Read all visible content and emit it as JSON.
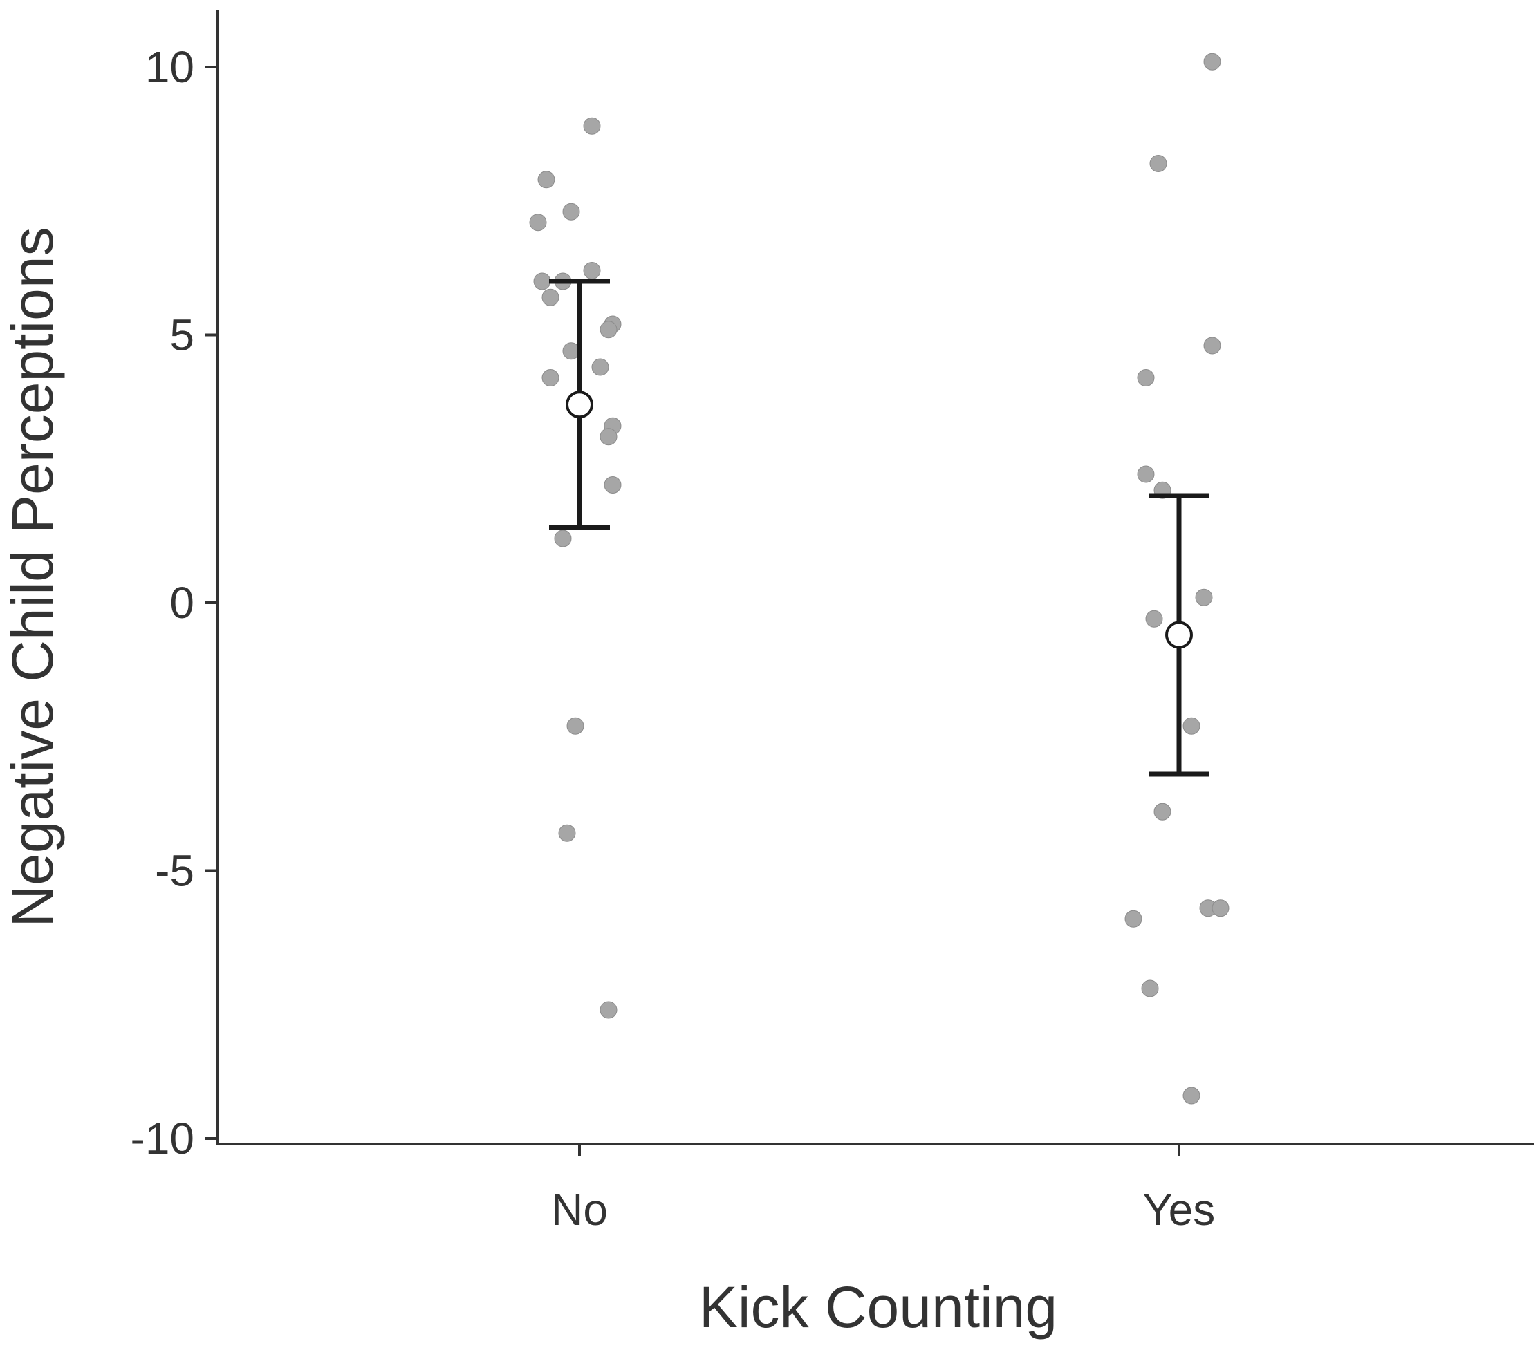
{
  "chart_data": {
    "type": "scatter",
    "title": "",
    "xlabel": "Kick Counting",
    "ylabel": "Negative Child Perceptions",
    "categories": [
      "No",
      "Yes"
    ],
    "ylim": [
      -10.3,
      11
    ],
    "yticks": [
      10,
      5,
      0,
      -5,
      -10
    ],
    "ytick_labels": [
      "10",
      "5",
      "0",
      "-5",
      "-10"
    ],
    "grid": false,
    "legend": "none",
    "colors": {
      "raw_points": "#a6a6a6",
      "summary": "#1a1a1a",
      "mean_fill": "#ffffff",
      "axis": "#333333"
    },
    "groups": [
      {
        "category": "No",
        "mean": 3.7,
        "ci": [
          1.4,
          6.0
        ],
        "points": [
          {
            "jitter": -0.08,
            "y": 7.9
          },
          {
            "jitter": 0.03,
            "y": 8.9
          },
          {
            "jitter": -0.1,
            "y": 7.1
          },
          {
            "jitter": -0.02,
            "y": 7.3
          },
          {
            "jitter": -0.09,
            "y": 6.0
          },
          {
            "jitter": -0.04,
            "y": 6.0
          },
          {
            "jitter": 0.03,
            "y": 6.2
          },
          {
            "jitter": -0.07,
            "y": 5.7
          },
          {
            "jitter": 0.08,
            "y": 5.2
          },
          {
            "jitter": 0.07,
            "y": 5.1
          },
          {
            "jitter": -0.02,
            "y": 4.7
          },
          {
            "jitter": 0.05,
            "y": 4.4
          },
          {
            "jitter": -0.07,
            "y": 4.2
          },
          {
            "jitter": 0.08,
            "y": 3.3
          },
          {
            "jitter": 0.07,
            "y": 3.1
          },
          {
            "jitter": 0.08,
            "y": 2.2
          },
          {
            "jitter": -0.04,
            "y": 1.2
          },
          {
            "jitter": -0.01,
            "y": -2.3
          },
          {
            "jitter": -0.03,
            "y": -4.3
          },
          {
            "jitter": 0.07,
            "y": -7.6
          }
        ]
      },
      {
        "category": "Yes",
        "mean": -0.6,
        "ci": [
          -3.2,
          2.0
        ],
        "points": [
          {
            "jitter": 0.08,
            "y": 10.1
          },
          {
            "jitter": -0.05,
            "y": 8.2
          },
          {
            "jitter": 0.08,
            "y": 4.8
          },
          {
            "jitter": -0.08,
            "y": 4.2
          },
          {
            "jitter": -0.08,
            "y": 2.4
          },
          {
            "jitter": -0.04,
            "y": 2.1
          },
          {
            "jitter": 0.06,
            "y": 0.1
          },
          {
            "jitter": -0.06,
            "y": -0.3
          },
          {
            "jitter": 0.03,
            "y": -2.3
          },
          {
            "jitter": -0.04,
            "y": -3.9
          },
          {
            "jitter": 0.07,
            "y": -5.7
          },
          {
            "jitter": 0.1,
            "y": -5.7
          },
          {
            "jitter": -0.11,
            "y": -5.9
          },
          {
            "jitter": -0.07,
            "y": -7.2
          },
          {
            "jitter": 0.03,
            "y": -9.2
          }
        ]
      }
    ]
  }
}
